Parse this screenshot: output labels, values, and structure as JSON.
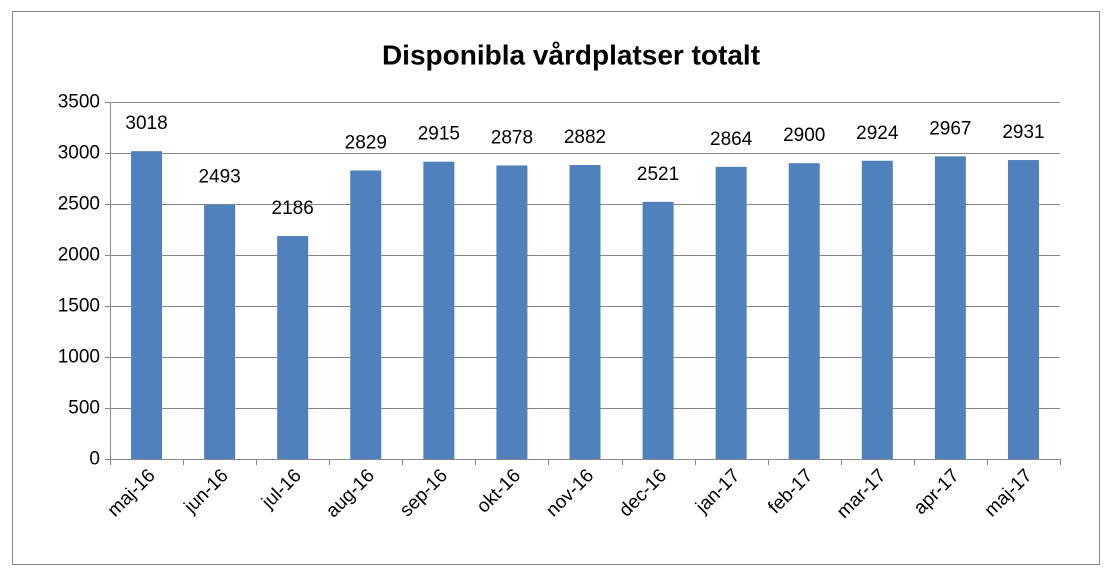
{
  "chart_data": {
    "type": "bar",
    "title": "Disponibla vårdplatser totalt",
    "categories": [
      "maj-16",
      "jun-16",
      "jul-16",
      "aug-16",
      "sep-16",
      "okt-16",
      "nov-16",
      "dec-16",
      "jan-17",
      "feb-17",
      "mar-17",
      "apr-17",
      "maj-17"
    ],
    "values": [
      3018,
      2493,
      2186,
      2829,
      2915,
      2878,
      2882,
      2521,
      2864,
      2900,
      2924,
      2967,
      2931
    ],
    "color": "#4f81bd",
    "ylim": [
      0,
      3500
    ],
    "yticks": [
      0,
      500,
      1000,
      1500,
      2000,
      2500,
      3000,
      3500
    ],
    "grid": true
  }
}
